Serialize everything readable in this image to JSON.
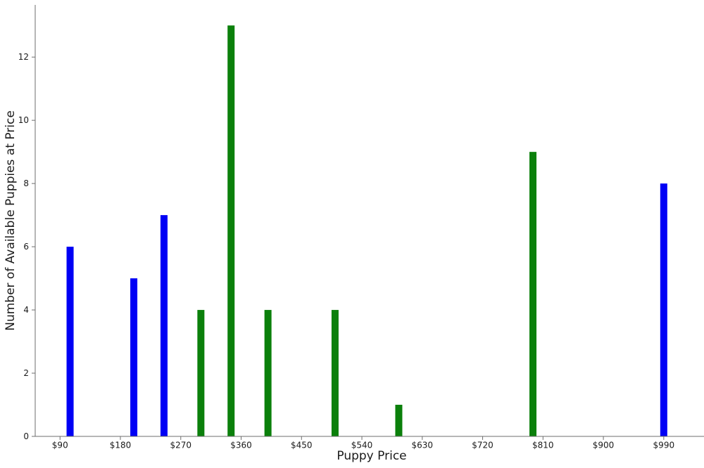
{
  "figure": {
    "background": "#ffffff"
  },
  "chart_data": {
    "type": "bar",
    "title": "",
    "xlabel": "Puppy Price",
    "ylabel": "Number of Available Puppies at Price",
    "x": [
      105,
      200,
      245,
      300,
      345,
      400,
      500,
      595,
      795,
      990
    ],
    "values": [
      6,
      5,
      7,
      4,
      13,
      4,
      4,
      1,
      9,
      8
    ],
    "bar_colors": [
      "blue",
      "blue",
      "blue",
      "green",
      "green",
      "green",
      "green",
      "green",
      "green",
      "blue"
    ],
    "bar_width_dollars": 10.5,
    "xticks": [
      90,
      180,
      270,
      360,
      450,
      540,
      630,
      720,
      810,
      900,
      990
    ],
    "xtick_labels": [
      "$90",
      "$180",
      "$270",
      "$360",
      "$450",
      "$540",
      "$630",
      "$720",
      "$810",
      "$900",
      "$990"
    ],
    "yticks": [
      0,
      2,
      4,
      6,
      8,
      10,
      12
    ],
    "ytick_labels": [
      "0",
      "2",
      "4",
      "6",
      "8",
      "10",
      "12"
    ],
    "xlim": [
      53,
      1050
    ],
    "ylim": [
      0,
      13.65
    ],
    "grid": false,
    "legend": null,
    "colors": {
      "blue": "#0000f5",
      "green": "#0b800b",
      "axis": "#6e6e6e",
      "text": "#1a1a1a"
    }
  }
}
